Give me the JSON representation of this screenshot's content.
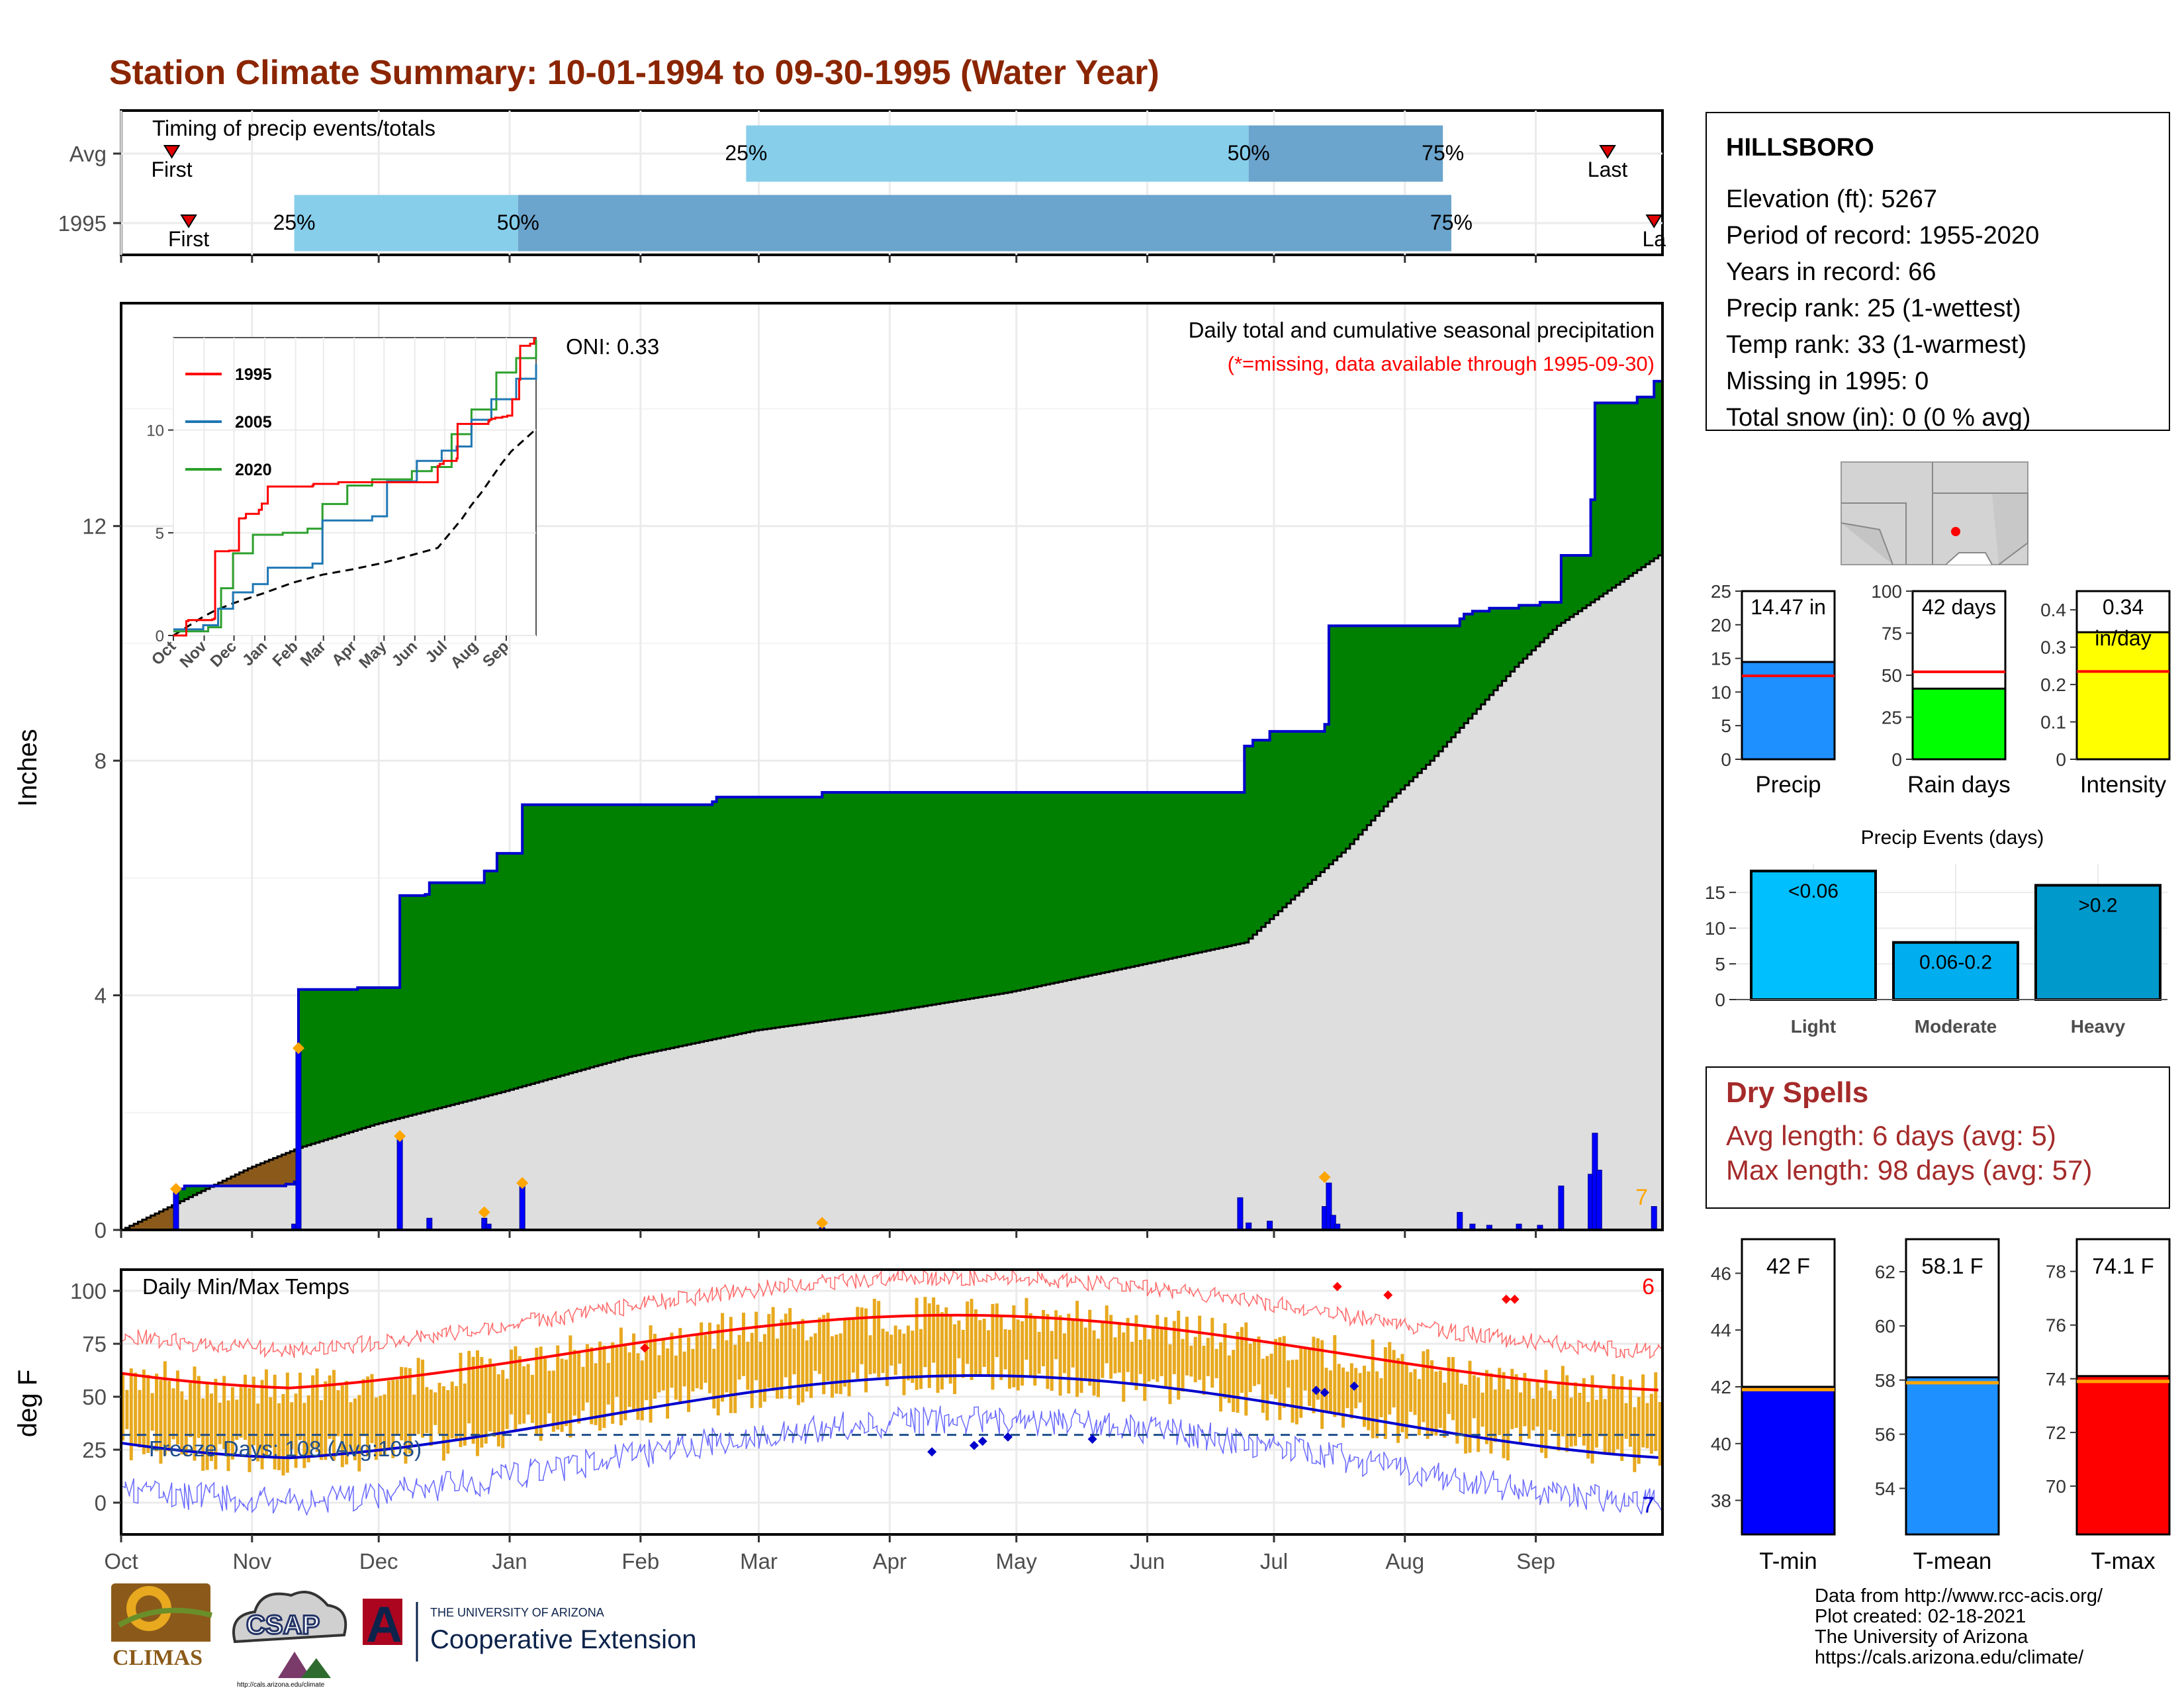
{
  "title": "Station Climate Summary: 10-01-1994 to 09-30-1995 (Water Year)",
  "colors": {
    "title": "#8b2500",
    "accum": "#008000",
    "climo": "#dedede",
    "deficit": "#8b5a1a",
    "bars": "#0000ff",
    "diamond": "#ffa500",
    "q1": "#87ceeb",
    "q2": "#6ba4cc",
    "temp_bar": "#e8a91f",
    "tmax_line": "#ff0000",
    "tmin_line": "#0000cd"
  },
  "months": [
    "Oct",
    "Nov",
    "Dec",
    "Jan",
    "Feb",
    "Mar",
    "Apr",
    "May",
    "Jun",
    "Jul",
    "Aug",
    "Sep"
  ],
  "timing": {
    "label": "Timing of precip events/totals",
    "rows": [
      {
        "label": "Avg",
        "first_label": "First",
        "first_doy": 12,
        "last_label": "Last",
        "last_doy": 352,
        "q25": 148,
        "q50": 267,
        "q75": 313,
        "p25": "25%",
        "p50": "50%",
        "p75": "75%"
      },
      {
        "label": "1995",
        "first_label": "First",
        "first_doy": 16,
        "last_label": "La",
        "last_doy": 363,
        "q25": 41,
        "q50": 94,
        "q75": 315,
        "p25": "25%",
        "p50": "50%",
        "p75": "75%"
      }
    ]
  },
  "precip_panel": {
    "ylabel": "Inches",
    "yticks": [
      0,
      4,
      8,
      12
    ],
    "ylim": [
      0,
      15.8
    ],
    "top_text": "Daily total and cumulative seasonal precipitation",
    "missing_text": "(*=missing, data available through 1995-09-30)",
    "oni": "ONI: 0.33",
    "corner_count": "7",
    "accum_steps": [
      [
        0,
        0
      ],
      [
        13,
        0.7
      ],
      [
        15,
        0.75
      ],
      [
        39,
        0.78
      ],
      [
        41,
        0.82
      ],
      [
        42,
        4.1
      ],
      [
        56,
        4.13
      ],
      [
        65,
        4.13
      ],
      [
        66,
        5.7
      ],
      [
        72,
        5.72
      ],
      [
        73,
        5.92
      ],
      [
        86,
        5.92
      ],
      [
        86,
        6.12
      ],
      [
        89,
        6.12
      ],
      [
        89,
        6.42
      ],
      [
        95,
        6.42
      ],
      [
        95,
        7.25
      ],
      [
        115,
        7.25
      ],
      [
        140,
        7.3
      ],
      [
        141,
        7.38
      ],
      [
        148,
        7.38
      ],
      [
        166,
        7.38
      ],
      [
        166,
        7.46
      ],
      [
        232,
        7.46
      ],
      [
        266,
        7.46
      ],
      [
        266,
        8.25
      ],
      [
        268,
        8.25
      ],
      [
        268,
        8.35
      ],
      [
        272,
        8.35
      ],
      [
        272,
        8.5
      ],
      [
        285,
        8.5
      ],
      [
        285,
        8.62
      ],
      [
        286,
        8.62
      ],
      [
        286,
        10.3
      ],
      [
        317,
        10.3
      ],
      [
        317,
        10.42
      ],
      [
        318,
        10.5
      ],
      [
        320,
        10.5
      ],
      [
        320,
        10.55
      ],
      [
        324,
        10.55
      ],
      [
        324,
        10.6
      ],
      [
        331,
        10.6
      ],
      [
        331,
        10.65
      ],
      [
        336,
        10.65
      ],
      [
        336,
        10.7
      ],
      [
        341,
        10.7
      ],
      [
        341,
        11.5
      ],
      [
        348,
        11.5
      ],
      [
        348,
        12.45
      ],
      [
        349,
        12.45
      ],
      [
        349,
        14.1
      ],
      [
        359,
        14.1
      ],
      [
        359,
        14.2
      ],
      [
        363,
        14.2
      ],
      [
        363,
        14.47
      ],
      [
        365,
        14.47
      ]
    ],
    "climo_points": [
      [
        0,
        0
      ],
      [
        10,
        0.35
      ],
      [
        20,
        0.7
      ],
      [
        30,
        1.05
      ],
      [
        42,
        1.4
      ],
      [
        60,
        1.8
      ],
      [
        90,
        2.35
      ],
      [
        120,
        2.95
      ],
      [
        150,
        3.4
      ],
      [
        180,
        3.7
      ],
      [
        210,
        4.05
      ],
      [
        240,
        4.5
      ],
      [
        266,
        4.9
      ],
      [
        275,
        5.5
      ],
      [
        290,
        6.5
      ],
      [
        300,
        7.3
      ],
      [
        310,
        8.0
      ],
      [
        320,
        8.8
      ],
      [
        330,
        9.6
      ],
      [
        340,
        10.3
      ],
      [
        350,
        10.8
      ],
      [
        365,
        11.55
      ]
    ],
    "daily_bars": [
      [
        13,
        0.7
      ],
      [
        41,
        0.1
      ],
      [
        42,
        3.1
      ],
      [
        66,
        1.6
      ],
      [
        73,
        0.2
      ],
      [
        86,
        0.2
      ],
      [
        87,
        0.1
      ],
      [
        95,
        0.8
      ],
      [
        166,
        0.04
      ],
      [
        265,
        0.55
      ],
      [
        267,
        0.12
      ],
      [
        272,
        0.15
      ],
      [
        285,
        0.4
      ],
      [
        286,
        0.8
      ],
      [
        287,
        0.25
      ],
      [
        288,
        0.1
      ],
      [
        317,
        0.3
      ],
      [
        320,
        0.1
      ],
      [
        324,
        0.08
      ],
      [
        331,
        0.1
      ],
      [
        336,
        0.08
      ],
      [
        341,
        0.75
      ],
      [
        348,
        0.95
      ],
      [
        349,
        1.65
      ],
      [
        350,
        1.02
      ],
      [
        363,
        0.4
      ]
    ],
    "diamonds": [
      [
        13,
        0.7
      ],
      [
        42,
        3.1
      ],
      [
        66,
        1.6
      ],
      [
        86,
        0.3
      ],
      [
        95,
        0.8
      ],
      [
        166,
        0.12
      ],
      [
        285,
        0.9
      ]
    ]
  },
  "inset": {
    "series": [
      {
        "name": "1995",
        "color": "#ff0000"
      },
      {
        "name": "2005",
        "color": "#1f77b4"
      },
      {
        "name": "2020",
        "color": "#2ca02c"
      }
    ],
    "yticks": [
      0,
      5,
      10
    ],
    "ylim": [
      0,
      14.5
    ],
    "months": [
      "Oct",
      "Nov",
      "Dec",
      "Jan",
      "Feb",
      "Mar",
      "Apr",
      "May",
      "Jun",
      "Jul",
      "Aug",
      "Sep"
    ]
  },
  "temp_panel": {
    "label": "Daily Min/Max Temps",
    "ylabel": "deg F",
    "yticks": [
      0,
      25,
      50,
      75,
      100
    ],
    "ylim": [
      -15,
      110
    ],
    "freeze_label": "Freeze Days: 108 (Avg:103)",
    "freeze_line": 32,
    "count_top": "6",
    "count_bottom": "7"
  },
  "station": {
    "name": "HILLSBORO",
    "lines": [
      "Elevation (ft): 5267",
      "Period of record: 1955-2020",
      "Years in record: 66",
      "Precip rank: 25 (1-wettest)",
      "Temp rank: 33 (1-warmest)",
      "Missing in 1995: 0",
      "Total snow (in): 0 (0 % avg)"
    ]
  },
  "mini_bars": [
    {
      "name": "Precip",
      "label": "14.47 in",
      "value": 14.47,
      "avg": 12.4,
      "ymax": 25,
      "yticks": [
        0,
        5,
        10,
        15,
        20,
        25
      ],
      "color": "#1e90ff"
    },
    {
      "name": "Rain days",
      "label": "42 days",
      "value": 42,
      "avg": 52,
      "ymax": 100,
      "yticks": [
        0,
        25,
        50,
        75,
        100
      ],
      "color": "#00ff00"
    },
    {
      "name": "Intensity",
      "label": "0.34",
      "label2": "in/day",
      "value": 0.34,
      "avg": 0.235,
      "ymax": 0.45,
      "yticks": [
        0.0,
        0.1,
        0.2,
        0.3,
        0.4
      ],
      "color": "#ffff00"
    }
  ],
  "events": {
    "title": "Precip Events (days)",
    "yticks": [
      0,
      5,
      10,
      15
    ],
    "ymax": 19,
    "bars": [
      {
        "cat": "Light",
        "label": "<0.06",
        "value": 18,
        "color": "#00bfff"
      },
      {
        "cat": "Moderate",
        "label": "0.06-0.2",
        "value": 8,
        "color": "#00aeef"
      },
      {
        "cat": "Heavy",
        "label": ">0.2",
        "value": 16,
        "color": "#0099cc"
      }
    ]
  },
  "dry_spells": {
    "title": "Dry Spells",
    "lines": [
      "Avg length: 6 days (avg: 5)",
      "Max length: 98 days (avg: 57)"
    ]
  },
  "temp_bars": [
    {
      "name": "T-min",
      "label": "42 F",
      "value": 42,
      "avg": 41.9,
      "ymin": 36.8,
      "ymax": 47.2,
      "yticks": [
        38,
        40,
        42,
        44,
        46
      ],
      "color": "#0000ff"
    },
    {
      "name": "T-mean",
      "label": "58.1 F",
      "value": 58.1,
      "avg": 57.9,
      "ymin": 52.3,
      "ymax": 63.2,
      "yticks": [
        54,
        56,
        58,
        60,
        62
      ],
      "color": "#1e90ff"
    },
    {
      "name": "T-max",
      "label": "74.1 F",
      "value": 74.1,
      "avg": 73.9,
      "ymin": 68.2,
      "ymax": 79.2,
      "yticks": [
        70,
        72,
        74,
        76,
        78
      ],
      "color": "#ff0000"
    }
  ],
  "footer": {
    "lines": [
      "Data from http://www.rcc-acis.org/",
      "Plot created: 02-18-2021",
      "The University of Arizona",
      "https://cals.arizona.edu/climate/"
    ],
    "climas": "CLIMAS",
    "csap": "CSAP",
    "csap_url": "http://cals.arizona.edu/climate",
    "ua_top": "THE UNIVERSITY OF ARIZONA",
    "ua_bottom": "Cooperative Extension",
    "ua_letter": "A"
  },
  "chart_data": [
    {
      "type": "line",
      "title": "Daily total and cumulative seasonal precipitation",
      "ylabel": "Inches",
      "ylim": [
        0,
        15.8
      ],
      "series": [
        {
          "name": "1995 cumulative",
          "total": 14.47
        },
        {
          "name": "average cumulative",
          "total": 11.55
        }
      ]
    },
    {
      "type": "bar",
      "categories": [
        "Precip",
        "Rain days",
        "Intensity"
      ],
      "values": [
        14.47,
        42,
        0.34
      ]
    },
    {
      "type": "bar",
      "title": "Precip Events (days)",
      "categories": [
        "Light",
        "Moderate",
        "Heavy"
      ],
      "values": [
        18,
        8,
        16
      ]
    },
    {
      "type": "bar",
      "categories": [
        "T-min",
        "T-mean",
        "T-max"
      ],
      "values": [
        42,
        58.1,
        74.1
      ]
    }
  ]
}
